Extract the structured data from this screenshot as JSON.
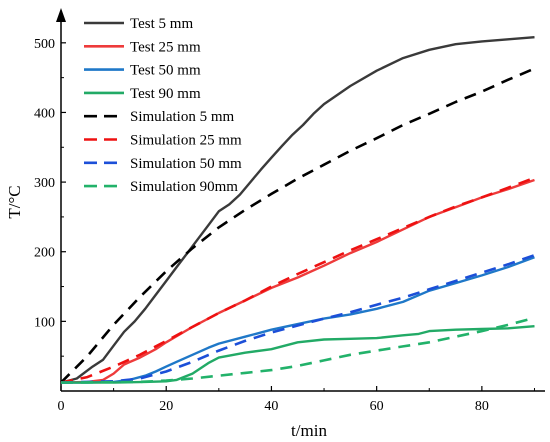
{
  "chart_data": {
    "type": "line",
    "xlabel": "t/min",
    "ylabel": "T/°C",
    "xlim": [
      0,
      92
    ],
    "ylim": [
      0,
      550
    ],
    "xticks": [
      0,
      20,
      40,
      60,
      80
    ],
    "yticks": [
      100,
      200,
      300,
      400,
      500
    ],
    "grid": false,
    "legend_position": "top-left",
    "series": [
      {
        "name": "Test 5 mm",
        "color": "#3a3a3a",
        "dash": "solid",
        "points": [
          [
            0,
            12
          ],
          [
            3,
            18
          ],
          [
            6,
            35
          ],
          [
            8,
            45
          ],
          [
            10,
            65
          ],
          [
            12,
            85
          ],
          [
            14,
            100
          ],
          [
            16,
            118
          ],
          [
            18,
            138
          ],
          [
            20,
            158
          ],
          [
            22,
            178
          ],
          [
            24,
            198
          ],
          [
            26,
            218
          ],
          [
            28,
            238
          ],
          [
            30,
            258
          ],
          [
            32,
            268
          ],
          [
            34,
            282
          ],
          [
            36,
            300
          ],
          [
            38,
            318
          ],
          [
            40,
            335
          ],
          [
            42,
            352
          ],
          [
            44,
            368
          ],
          [
            46,
            382
          ],
          [
            48,
            398
          ],
          [
            50,
            412
          ],
          [
            55,
            438
          ],
          [
            60,
            460
          ],
          [
            65,
            478
          ],
          [
            70,
            490
          ],
          [
            75,
            498
          ],
          [
            80,
            502
          ],
          [
            85,
            505
          ],
          [
            90,
            508
          ]
        ]
      },
      {
        "name": "Test 25 mm",
        "color": "#ee3b3b",
        "dash": "solid",
        "points": [
          [
            0,
            12
          ],
          [
            5,
            13
          ],
          [
            8,
            16
          ],
          [
            10,
            25
          ],
          [
            12,
            38
          ],
          [
            15,
            48
          ],
          [
            18,
            60
          ],
          [
            20,
            70
          ],
          [
            25,
            92
          ],
          [
            30,
            112
          ],
          [
            35,
            130
          ],
          [
            40,
            148
          ],
          [
            45,
            163
          ],
          [
            50,
            180
          ],
          [
            55,
            198
          ],
          [
            60,
            214
          ],
          [
            65,
            232
          ],
          [
            70,
            250
          ],
          [
            75,
            264
          ],
          [
            80,
            278
          ],
          [
            85,
            290
          ],
          [
            90,
            303
          ]
        ]
      },
      {
        "name": "Test 50 mm",
        "color": "#1f78c8",
        "dash": "solid",
        "points": [
          [
            0,
            12
          ],
          [
            5,
            12
          ],
          [
            10,
            13
          ],
          [
            13,
            16
          ],
          [
            16,
            22
          ],
          [
            18,
            28
          ],
          [
            20,
            35
          ],
          [
            22,
            42
          ],
          [
            25,
            52
          ],
          [
            28,
            62
          ],
          [
            30,
            68
          ],
          [
            35,
            78
          ],
          [
            40,
            88
          ],
          [
            45,
            96
          ],
          [
            50,
            104
          ],
          [
            55,
            110
          ],
          [
            60,
            118
          ],
          [
            65,
            128
          ],
          [
            70,
            144
          ],
          [
            75,
            155
          ],
          [
            80,
            166
          ],
          [
            85,
            178
          ],
          [
            90,
            192
          ]
        ]
      },
      {
        "name": "Test 90 mm",
        "color": "#22aa66",
        "dash": "solid",
        "points": [
          [
            0,
            12
          ],
          [
            10,
            12
          ],
          [
            16,
            13
          ],
          [
            20,
            14
          ],
          [
            22,
            16
          ],
          [
            25,
            25
          ],
          [
            28,
            40
          ],
          [
            30,
            48
          ],
          [
            35,
            55
          ],
          [
            40,
            60
          ],
          [
            45,
            70
          ],
          [
            50,
            74
          ],
          [
            55,
            75
          ],
          [
            60,
            76
          ],
          [
            65,
            80
          ],
          [
            68,
            82
          ],
          [
            70,
            86
          ],
          [
            75,
            88
          ],
          [
            80,
            89
          ],
          [
            85,
            90
          ],
          [
            90,
            93
          ]
        ]
      },
      {
        "name": "Simulation 5 mm",
        "color": "#000000",
        "dash": "dashed",
        "points": [
          [
            0,
            12
          ],
          [
            5,
            50
          ],
          [
            10,
            95
          ],
          [
            15,
            135
          ],
          [
            20,
            172
          ],
          [
            25,
            205
          ],
          [
            30,
            235
          ],
          [
            35,
            260
          ],
          [
            40,
            283
          ],
          [
            45,
            305
          ],
          [
            50,
            325
          ],
          [
            55,
            345
          ],
          [
            60,
            363
          ],
          [
            65,
            382
          ],
          [
            70,
            398
          ],
          [
            75,
            415
          ],
          [
            80,
            430
          ],
          [
            85,
            447
          ],
          [
            90,
            463
          ]
        ]
      },
      {
        "name": "Simulation 25 mm",
        "color": "#ee1111",
        "dash": "dashed",
        "points": [
          [
            0,
            12
          ],
          [
            5,
            20
          ],
          [
            10,
            35
          ],
          [
            15,
            52
          ],
          [
            20,
            72
          ],
          [
            25,
            92
          ],
          [
            30,
            112
          ],
          [
            35,
            130
          ],
          [
            40,
            150
          ],
          [
            45,
            168
          ],
          [
            50,
            185
          ],
          [
            55,
            202
          ],
          [
            60,
            218
          ],
          [
            65,
            234
          ],
          [
            70,
            250
          ],
          [
            75,
            265
          ],
          [
            80,
            278
          ],
          [
            85,
            292
          ],
          [
            90,
            306
          ]
        ]
      },
      {
        "name": "Simulation 50 mm",
        "color": "#1c4fd8",
        "dash": "dashed",
        "points": [
          [
            0,
            12
          ],
          [
            10,
            14
          ],
          [
            15,
            18
          ],
          [
            20,
            28
          ],
          [
            25,
            42
          ],
          [
            30,
            58
          ],
          [
            35,
            72
          ],
          [
            40,
            84
          ],
          [
            45,
            94
          ],
          [
            50,
            104
          ],
          [
            55,
            113
          ],
          [
            60,
            124
          ],
          [
            65,
            134
          ],
          [
            70,
            146
          ],
          [
            75,
            158
          ],
          [
            80,
            170
          ],
          [
            85,
            182
          ],
          [
            90,
            195
          ]
        ]
      },
      {
        "name": "Simulation 90mm",
        "color": "#22b26a",
        "dash": "dashed",
        "points": [
          [
            0,
            12
          ],
          [
            15,
            13
          ],
          [
            20,
            15
          ],
          [
            25,
            18
          ],
          [
            30,
            22
          ],
          [
            35,
            26
          ],
          [
            40,
            30
          ],
          [
            45,
            36
          ],
          [
            50,
            44
          ],
          [
            55,
            52
          ],
          [
            60,
            58
          ],
          [
            65,
            64
          ],
          [
            70,
            70
          ],
          [
            75,
            78
          ],
          [
            80,
            86
          ],
          [
            85,
            95
          ],
          [
            90,
            105
          ]
        ]
      }
    ]
  }
}
